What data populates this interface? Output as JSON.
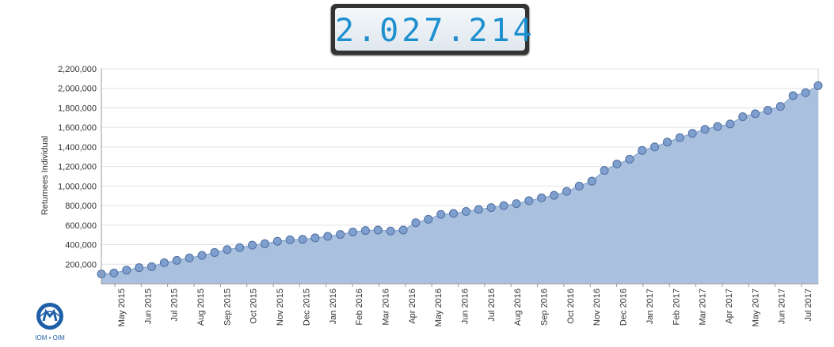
{
  "counter": {
    "value": "2.027.214"
  },
  "logo": {
    "text": "IOM • OIM"
  },
  "chart_data": {
    "type": "area",
    "ylabel": "Returnees Individual",
    "yticks": [
      "200,000",
      "400,000",
      "600,000",
      "800,000",
      "1,000,000",
      "1,200,000",
      "1,400,000",
      "1,600,000",
      "1,800,000",
      "2,000,000",
      "2,200,000"
    ],
    "ylim": [
      0,
      2200000
    ],
    "x_labels": [
      "May 2015",
      "Jun 2015",
      "Jul 2015",
      "Aug 2015",
      "Sep 2015",
      "Oct 2015",
      "Nov 2015",
      "Dec 2015",
      "Jan 2016",
      "Feb 2016",
      "Mar 2016",
      "Apr 2016",
      "May 2016",
      "Jun 2016",
      "Jul 2016",
      "Aug 2016",
      "Sep 2016",
      "Oct 2016",
      "Nov 2016",
      "Dec 2016",
      "Jan 2017",
      "Feb 2017",
      "Mar 2017",
      "Apr 2017",
      "May 2017",
      "Jun 2017",
      "Jul 2017"
    ],
    "grid": true,
    "colors": {
      "fill": "#a9c0df",
      "marker": "#7f9fcf",
      "marker_stroke": "#4f6f9f",
      "line": "#7f9fcf"
    },
    "values": [
      100000,
      110000,
      140000,
      165000,
      175000,
      215000,
      240000,
      265000,
      290000,
      320000,
      350000,
      370000,
      395000,
      410000,
      435000,
      450000,
      455000,
      470000,
      485000,
      505000,
      530000,
      545000,
      550000,
      540000,
      550000,
      625000,
      660000,
      710000,
      720000,
      740000,
      760000,
      780000,
      800000,
      820000,
      850000,
      880000,
      905000,
      945000,
      1000000,
      1050000,
      1160000,
      1225000,
      1275000,
      1365000,
      1400000,
      1450000,
      1495000,
      1540000,
      1580000,
      1610000,
      1635000,
      1710000,
      1740000,
      1775000,
      1815000,
      1925000,
      1955000,
      2027214
    ]
  }
}
